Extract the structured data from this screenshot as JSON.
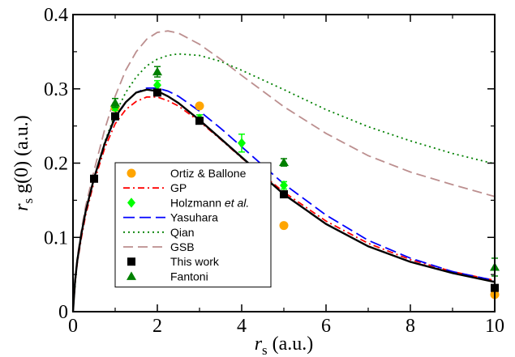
{
  "chart_data": {
    "type": "line",
    "xlim": [
      0,
      10
    ],
    "ylim": [
      0,
      0.4
    ],
    "x_ticks": [
      0,
      2,
      4,
      6,
      8,
      10
    ],
    "x_tick_labels": [
      "0",
      "2",
      "4",
      "6",
      "8",
      "10"
    ],
    "y_ticks": [
      0,
      0.1,
      0.2,
      0.3,
      0.4
    ],
    "y_tick_labels": [
      "0",
      "0.1",
      "0.2",
      "0.3",
      "0.4"
    ],
    "xlabel": {
      "var": "r",
      "sub": "s",
      "unit": " (a.u.)"
    },
    "ylabel": {
      "var": "r",
      "sub": "s",
      "rest": " g(0) (a.u.)"
    },
    "legend_position": "center-left",
    "grid": false,
    "curves": [
      {
        "name": "GP",
        "color": "#ff0000",
        "dash": "8,4,2,4",
        "points": [
          [
            0,
            0
          ],
          [
            0.05,
            0.04
          ],
          [
            0.1,
            0.065
          ],
          [
            0.2,
            0.1
          ],
          [
            0.3,
            0.13
          ],
          [
            0.5,
            0.175
          ],
          [
            0.75,
            0.22
          ],
          [
            1,
            0.253
          ],
          [
            1.25,
            0.272
          ],
          [
            1.5,
            0.283
          ],
          [
            1.75,
            0.289
          ],
          [
            2,
            0.289
          ],
          [
            2.25,
            0.284
          ],
          [
            2.5,
            0.277
          ],
          [
            3,
            0.256
          ],
          [
            3.5,
            0.232
          ],
          [
            4,
            0.207
          ],
          [
            4.5,
            0.184
          ],
          [
            5,
            0.161
          ],
          [
            6,
            0.122
          ],
          [
            7,
            0.092
          ],
          [
            8,
            0.07
          ],
          [
            9,
            0.054
          ],
          [
            10,
            0.042
          ]
        ]
      },
      {
        "name": "Yasuhara",
        "color": "#0000ff",
        "dash": "14,6",
        "points": [
          [
            0,
            0
          ],
          [
            0.05,
            0.042
          ],
          [
            0.1,
            0.068
          ],
          [
            0.2,
            0.105
          ],
          [
            0.3,
            0.135
          ],
          [
            0.5,
            0.18
          ],
          [
            0.75,
            0.226
          ],
          [
            1,
            0.26
          ],
          [
            1.25,
            0.282
          ],
          [
            1.5,
            0.295
          ],
          [
            1.75,
            0.301
          ],
          [
            2,
            0.301
          ],
          [
            2.25,
            0.297
          ],
          [
            2.5,
            0.29
          ],
          [
            3,
            0.27
          ],
          [
            3.5,
            0.247
          ],
          [
            4,
            0.222
          ],
          [
            4.5,
            0.197
          ],
          [
            5,
            0.172
          ],
          [
            6,
            0.13
          ],
          [
            7,
            0.096
          ],
          [
            8,
            0.072
          ],
          [
            9,
            0.054
          ],
          [
            10,
            0.042
          ]
        ]
      },
      {
        "name": "Qian",
        "color": "#008000",
        "dash": "2,4",
        "points": [
          [
            0,
            0
          ],
          [
            0.1,
            0.07
          ],
          [
            0.2,
            0.105
          ],
          [
            0.3,
            0.135
          ],
          [
            0.5,
            0.18
          ],
          [
            0.75,
            0.228
          ],
          [
            1,
            0.266
          ],
          [
            1.25,
            0.295
          ],
          [
            1.5,
            0.316
          ],
          [
            1.75,
            0.331
          ],
          [
            2,
            0.34
          ],
          [
            2.25,
            0.345
          ],
          [
            2.5,
            0.347
          ],
          [
            3,
            0.345
          ],
          [
            3.5,
            0.337
          ],
          [
            4,
            0.325
          ],
          [
            4.5,
            0.312
          ],
          [
            5,
            0.299
          ],
          [
            6,
            0.272
          ],
          [
            7,
            0.249
          ],
          [
            8,
            0.23
          ],
          [
            9,
            0.213
          ],
          [
            10,
            0.199
          ]
        ]
      },
      {
        "name": "GSB",
        "color": "#bc8f8f",
        "dash": "12,6",
        "points": [
          [
            0,
            0
          ],
          [
            0.1,
            0.072
          ],
          [
            0.2,
            0.11
          ],
          [
            0.3,
            0.142
          ],
          [
            0.5,
            0.19
          ],
          [
            0.75,
            0.245
          ],
          [
            1,
            0.29
          ],
          [
            1.25,
            0.325
          ],
          [
            1.5,
            0.35
          ],
          [
            1.75,
            0.367
          ],
          [
            2,
            0.376
          ],
          [
            2.25,
            0.378
          ],
          [
            2.5,
            0.375
          ],
          [
            3,
            0.36
          ],
          [
            3.5,
            0.34
          ],
          [
            4,
            0.318
          ],
          [
            4.5,
            0.297
          ],
          [
            5,
            0.276
          ],
          [
            6,
            0.24
          ],
          [
            7,
            0.21
          ],
          [
            8,
            0.188
          ],
          [
            9,
            0.171
          ],
          [
            10,
            0.155
          ]
        ]
      },
      {
        "name": "",
        "color": "#000000",
        "dash": "",
        "points": [
          [
            0,
            0
          ],
          [
            0.05,
            0.042
          ],
          [
            0.1,
            0.068
          ],
          [
            0.2,
            0.105
          ],
          [
            0.3,
            0.135
          ],
          [
            0.5,
            0.18
          ],
          [
            0.75,
            0.226
          ],
          [
            1,
            0.262
          ],
          [
            1.25,
            0.282
          ],
          [
            1.5,
            0.295
          ],
          [
            1.75,
            0.299
          ],
          [
            2,
            0.297
          ],
          [
            2.25,
            0.29
          ],
          [
            2.5,
            0.281
          ],
          [
            3,
            0.258
          ],
          [
            3.5,
            0.233
          ],
          [
            4,
            0.208
          ],
          [
            4.5,
            0.183
          ],
          [
            5,
            0.158
          ],
          [
            6,
            0.118
          ],
          [
            7,
            0.088
          ],
          [
            8,
            0.067
          ],
          [
            9,
            0.052
          ],
          [
            10,
            0.04
          ]
        ]
      }
    ],
    "points": [
      {
        "name": "Ortiz & Ballone",
        "color": "#ffa500",
        "marker": "circle",
        "data": [
          [
            1,
            0.275
          ],
          [
            3,
            0.277
          ],
          [
            5,
            0.116
          ],
          [
            10,
            0.023
          ]
        ]
      },
      {
        "name": "Holzmann et al.",
        "color": "#00ff00",
        "marker": "diamond",
        "data": [
          [
            1,
            0.275
          ],
          [
            2,
            0.305
          ],
          [
            3,
            0.26
          ],
          [
            4,
            0.227
          ],
          [
            5,
            0.17
          ]
        ],
        "errors": [
          0.004,
          0.006,
          0.005,
          0.012,
          0.005
        ]
      },
      {
        "name": "This work",
        "color": "#000000",
        "marker": "square",
        "data": [
          [
            0.5,
            0.179
          ],
          [
            1,
            0.263
          ],
          [
            2,
            0.295
          ],
          [
            3,
            0.257
          ],
          [
            5,
            0.158
          ],
          [
            10,
            0.032
          ]
        ]
      },
      {
        "name": "Fantoni",
        "color": "#008000",
        "marker": "triangle",
        "data": [
          [
            1,
            0.281
          ],
          [
            2,
            0.323
          ],
          [
            5,
            0.201
          ],
          [
            10,
            0.06
          ]
        ],
        "errors": [
          0.006,
          0.007,
          0.005,
          0.012
        ]
      }
    ],
    "legend": [
      {
        "label": "Ortiz & Ballone",
        "kind": "marker",
        "marker": "circle",
        "color": "#ffa500"
      },
      {
        "label": "GP",
        "kind": "line",
        "color": "#ff0000",
        "dash": "8,4,2,4"
      },
      {
        "label_main": "Holzmann ",
        "label_italic": "et al.",
        "kind": "marker",
        "marker": "diamond",
        "color": "#00ff00"
      },
      {
        "label": "Yasuhara",
        "kind": "line",
        "color": "#0000ff",
        "dash": "14,6"
      },
      {
        "label": "Qian",
        "kind": "line",
        "color": "#008000",
        "dash": "2,4"
      },
      {
        "label": "GSB",
        "kind": "line",
        "color": "#bc8f8f",
        "dash": "12,6"
      },
      {
        "label": "This work",
        "kind": "marker",
        "marker": "square",
        "color": "#000000"
      },
      {
        "label": "Fantoni",
        "kind": "marker",
        "marker": "triangle",
        "color": "#008000"
      }
    ]
  }
}
